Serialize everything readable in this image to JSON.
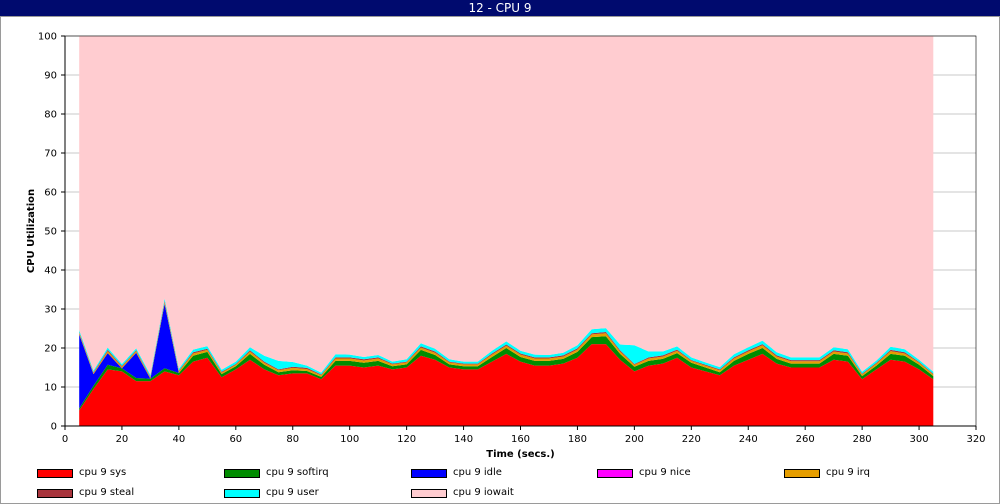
{
  "window": {
    "title": "12 - CPU 9"
  },
  "chart_data": {
    "type": "area",
    "stacked": true,
    "title": "",
    "xlabel": "Time (secs.)",
    "ylabel": "CPU Utilization",
    "xlim": [
      0,
      320
    ],
    "ylim": [
      0,
      100
    ],
    "xticks": [
      0,
      20,
      40,
      60,
      80,
      100,
      120,
      140,
      160,
      180,
      200,
      220,
      240,
      260,
      280,
      300,
      320
    ],
    "yticks": [
      0,
      10,
      20,
      30,
      40,
      50,
      60,
      70,
      80,
      90,
      100
    ],
    "grid": "horizontal",
    "legend_position": "bottom",
    "x": [
      5,
      10,
      15,
      20,
      25,
      30,
      35,
      40,
      45,
      50,
      55,
      60,
      65,
      70,
      75,
      80,
      85,
      90,
      95,
      100,
      105,
      110,
      115,
      120,
      125,
      130,
      135,
      140,
      145,
      150,
      155,
      160,
      165,
      170,
      175,
      180,
      185,
      190,
      195,
      200,
      205,
      210,
      215,
      220,
      225,
      230,
      235,
      240,
      245,
      250,
      255,
      260,
      265,
      270,
      275,
      280,
      285,
      290,
      295,
      300,
      305
    ],
    "series": [
      {
        "name": "cpu 9 sys",
        "color": "#ff0000",
        "values": [
          4,
          9.5,
          14.5,
          14,
          11.5,
          11.5,
          14,
          13,
          16.5,
          17.5,
          12.5,
          14.5,
          17,
          14.5,
          13,
          13.5,
          13.5,
          12,
          15.5,
          15.5,
          15,
          15.5,
          14.5,
          15,
          18,
          17,
          15,
          14.5,
          14.5,
          16.5,
          18.5,
          16.5,
          15.5,
          15.5,
          16,
          17.5,
          21,
          21,
          17,
          14,
          15.5,
          16,
          17.5,
          15,
          14,
          13,
          15.5,
          17,
          18.5,
          16,
          15,
          15,
          15,
          17,
          16.5,
          12,
          14.5,
          17,
          16.5,
          14.5,
          12
        ]
      },
      {
        "name": "cpu 9 softirq",
        "color": "#008c00",
        "values": [
          0.5,
          0.8,
          1.2,
          0.8,
          0.8,
          0.6,
          0.8,
          0.6,
          1.5,
          1.5,
          0.8,
          0.8,
          1.5,
          1.2,
          0.8,
          0.8,
          0.6,
          0.6,
          1.2,
          1.2,
          1.2,
          1.2,
          0.8,
          0.8,
          1.5,
          1.2,
          0.8,
          0.8,
          0.8,
          1.2,
          1.5,
          1.2,
          1.2,
          1.2,
          1.2,
          1.5,
          1.8,
          2.0,
          1.5,
          1.2,
          1.2,
          1.2,
          1.2,
          1.2,
          1.0,
          0.8,
          1.2,
          1.5,
          1.5,
          1.2,
          1.0,
          1.0,
          1.0,
          1.5,
          1.5,
          0.8,
          1.0,
          1.5,
          1.5,
          1.2,
          0.8
        ]
      },
      {
        "name": "cpu 9 idle",
        "color": "#0000ff",
        "values": [
          19,
          3,
          3,
          0,
          6.5,
          0,
          16.5,
          0,
          0,
          0,
          0,
          0,
          0,
          0,
          0,
          0,
          0,
          0,
          0,
          0,
          0,
          0,
          0,
          0,
          0,
          0,
          0,
          0,
          0,
          0,
          0,
          0,
          0,
          0,
          0,
          0,
          0,
          0,
          0,
          0,
          0,
          0,
          0,
          0,
          0,
          0,
          0,
          0,
          0,
          0,
          0,
          0,
          0,
          0,
          0,
          0,
          0,
          0,
          0,
          0,
          0
        ]
      },
      {
        "name": "cpu 9 nice",
        "color": "#ff00ff",
        "values": [
          0,
          0,
          0,
          0,
          0,
          0,
          0,
          0,
          0,
          0,
          0,
          0,
          0,
          0,
          0,
          0,
          0,
          0,
          0,
          0,
          0,
          0,
          0,
          0,
          0,
          0,
          0,
          0,
          0,
          0,
          0,
          0,
          0,
          0,
          0,
          0,
          0,
          0,
          0,
          0,
          0,
          0,
          0,
          0,
          0,
          0,
          0,
          0,
          0,
          0,
          0,
          0,
          0,
          0,
          0,
          0,
          0,
          0,
          0,
          0,
          0
        ]
      },
      {
        "name": "cpu 9 irq",
        "color": "#e69e00",
        "values": [
          0.4,
          0.3,
          0.5,
          0.4,
          0.4,
          0.3,
          0.5,
          0.4,
          0.6,
          0.5,
          0.4,
          0.4,
          0.6,
          0.5,
          0.5,
          0.6,
          0.5,
          0.4,
          0.6,
          0.6,
          0.6,
          0.6,
          0.5,
          0.5,
          0.6,
          0.6,
          0.5,
          0.5,
          0.5,
          0.6,
          0.6,
          0.6,
          0.6,
          0.6,
          0.6,
          0.6,
          0.7,
          0.8,
          0.6,
          0.5,
          0.6,
          0.6,
          0.6,
          0.5,
          0.5,
          0.5,
          0.6,
          0.6,
          0.7,
          0.6,
          0.6,
          0.6,
          0.6,
          0.6,
          0.6,
          0.4,
          0.5,
          0.7,
          0.6,
          0.5,
          0.4
        ]
      },
      {
        "name": "cpu 9 steal",
        "color": "#a8343c",
        "values": [
          0.2,
          0.2,
          0.3,
          0.2,
          0.2,
          0.2,
          0.3,
          0.2,
          0.3,
          0.3,
          0.2,
          0.2,
          0.3,
          0.3,
          0.2,
          0.3,
          0.3,
          0.2,
          0.3,
          0.3,
          0.3,
          0.3,
          0.2,
          0.2,
          0.3,
          0.3,
          0.2,
          0.2,
          0.2,
          0.3,
          0.3,
          0.3,
          0.3,
          0.3,
          0.3,
          0.3,
          0.3,
          0.3,
          0.3,
          0.2,
          0.3,
          0.3,
          0.3,
          0.2,
          0.2,
          0.2,
          0.3,
          0.3,
          0.3,
          0.3,
          0.3,
          0.3,
          0.3,
          0.3,
          0.3,
          0.2,
          0.2,
          0.3,
          0.3,
          0.2,
          0.2
        ]
      },
      {
        "name": "cpu 9 user",
        "color": "#00ffff",
        "values": [
          0.5,
          0.4,
          0.6,
          0.5,
          0.5,
          0.5,
          0.6,
          0.5,
          0.7,
          0.7,
          0.5,
          0.6,
          0.8,
          1.5,
          2.2,
          1.2,
          0.6,
          0.5,
          0.8,
          0.7,
          0.6,
          0.6,
          0.5,
          0.6,
          0.8,
          0.7,
          0.6,
          0.5,
          0.5,
          0.7,
          0.8,
          0.7,
          0.7,
          0.6,
          0.7,
          0.8,
          1.0,
          1.0,
          1.5,
          4.8,
          1.5,
          1.0,
          0.8,
          0.7,
          0.6,
          0.6,
          0.8,
          0.8,
          0.9,
          0.8,
          0.7,
          0.7,
          0.7,
          0.8,
          0.8,
          0.5,
          0.6,
          0.8,
          0.8,
          0.6,
          0.5
        ]
      },
      {
        "name": "cpu 9 iowait",
        "color": "#ffccd0",
        "fill_to_top": true
      }
    ]
  }
}
